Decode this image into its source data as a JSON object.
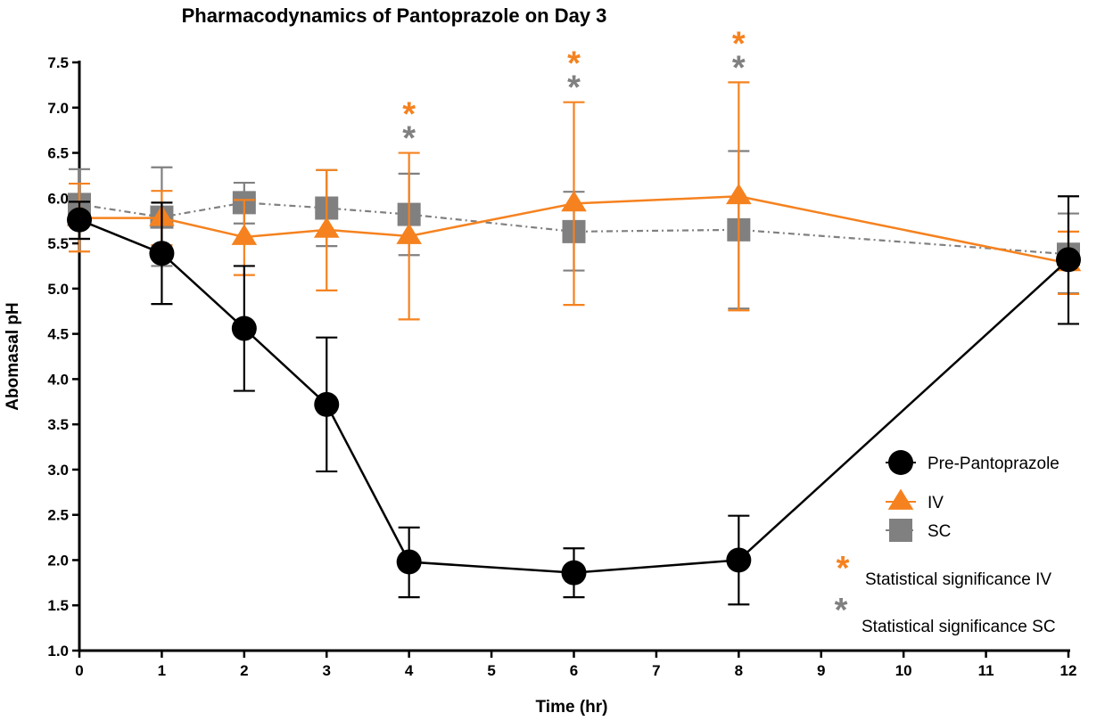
{
  "chart_data": {
    "type": "line",
    "title": "Pharmacodynamics of Pantoprazole on Day 3",
    "xlabel": "Time (hr)",
    "ylabel": "Abomasal pH",
    "xlim": [
      0,
      12
    ],
    "ylim": [
      1.0,
      7.5
    ],
    "x_ticks": [
      "0",
      "1",
      "2",
      "3",
      "4",
      "5",
      "6",
      "7",
      "8",
      "9",
      "10",
      "11",
      "12"
    ],
    "y_ticks": [
      "1.0",
      "1.5",
      "2.0",
      "2.5",
      "3.0",
      "3.5",
      "4.0",
      "4.5",
      "5.0",
      "5.5",
      "6.0",
      "6.5",
      "7.0",
      "7.5"
    ],
    "series": [
      {
        "name": "SC",
        "color": "#808080",
        "marker": "square",
        "line_style": "dash-dot",
        "points": [
          {
            "x": 0,
            "y": 5.93,
            "lo": 5.55,
            "hi": 6.32
          },
          {
            "x": 1,
            "y": 5.79,
            "lo": 5.25,
            "hi": 6.34
          },
          {
            "x": 2,
            "y": 5.95,
            "lo": 5.72,
            "hi": 6.17
          },
          {
            "x": 3,
            "y": 5.89,
            "lo": 5.47,
            "hi": 6.31
          },
          {
            "x": 4,
            "y": 5.82,
            "lo": 5.37,
            "hi": 6.27
          },
          {
            "x": 6,
            "y": 5.63,
            "lo": 5.2,
            "hi": 6.07
          },
          {
            "x": 8,
            "y": 5.65,
            "lo": 4.78,
            "hi": 6.52
          },
          {
            "x": 12,
            "y": 5.38,
            "lo": 4.95,
            "hi": 5.83
          }
        ]
      },
      {
        "name": "IV",
        "color": "#F5821F",
        "marker": "triangle",
        "line_style": "solid",
        "points": [
          {
            "x": 0,
            "y": 5.78,
            "lo": 5.41,
            "hi": 6.16
          },
          {
            "x": 1,
            "y": 5.78,
            "lo": 5.48,
            "hi": 6.08
          },
          {
            "x": 2,
            "y": 5.57,
            "lo": 5.15,
            "hi": 5.98
          },
          {
            "x": 3,
            "y": 5.65,
            "lo": 4.98,
            "hi": 6.31
          },
          {
            "x": 4,
            "y": 5.58,
            "lo": 4.66,
            "hi": 6.5
          },
          {
            "x": 6,
            "y": 5.94,
            "lo": 4.82,
            "hi": 7.06
          },
          {
            "x": 8,
            "y": 6.02,
            "lo": 4.76,
            "hi": 7.28
          },
          {
            "x": 12,
            "y": 5.28,
            "lo": 4.94,
            "hi": 5.63
          }
        ]
      },
      {
        "name": "Pre-Pantoprazole",
        "color": "#000000",
        "marker": "circle",
        "line_style": "solid",
        "points": [
          {
            "x": 0,
            "y": 5.76,
            "lo": 5.55,
            "hi": 5.96
          },
          {
            "x": 1,
            "y": 5.39,
            "lo": 4.83,
            "hi": 5.95
          },
          {
            "x": 2,
            "y": 4.56,
            "lo": 3.87,
            "hi": 5.25
          },
          {
            "x": 3,
            "y": 3.72,
            "lo": 2.98,
            "hi": 4.46
          },
          {
            "x": 4,
            "y": 1.98,
            "lo": 1.59,
            "hi": 2.36
          },
          {
            "x": 6,
            "y": 1.86,
            "lo": 1.59,
            "hi": 2.13
          },
          {
            "x": 8,
            "y": 2.0,
            "lo": 1.51,
            "hi": 2.49
          },
          {
            "x": 12,
            "y": 5.32,
            "lo": 4.61,
            "hi": 6.02
          }
        ]
      }
    ],
    "significance": [
      {
        "x": 4,
        "iv": true,
        "sc": true
      },
      {
        "x": 6,
        "iv": true,
        "sc": true
      },
      {
        "x": 8,
        "iv": true,
        "sc": true
      }
    ],
    "legend": {
      "placement": "bottom-right",
      "entries": [
        "Pre-Pantoprazole",
        "IV",
        "SC"
      ],
      "star_symbol": "*",
      "sig_iv_label": "Statistical significance IV",
      "sig_sc_label": "Statistical significance SC"
    }
  }
}
